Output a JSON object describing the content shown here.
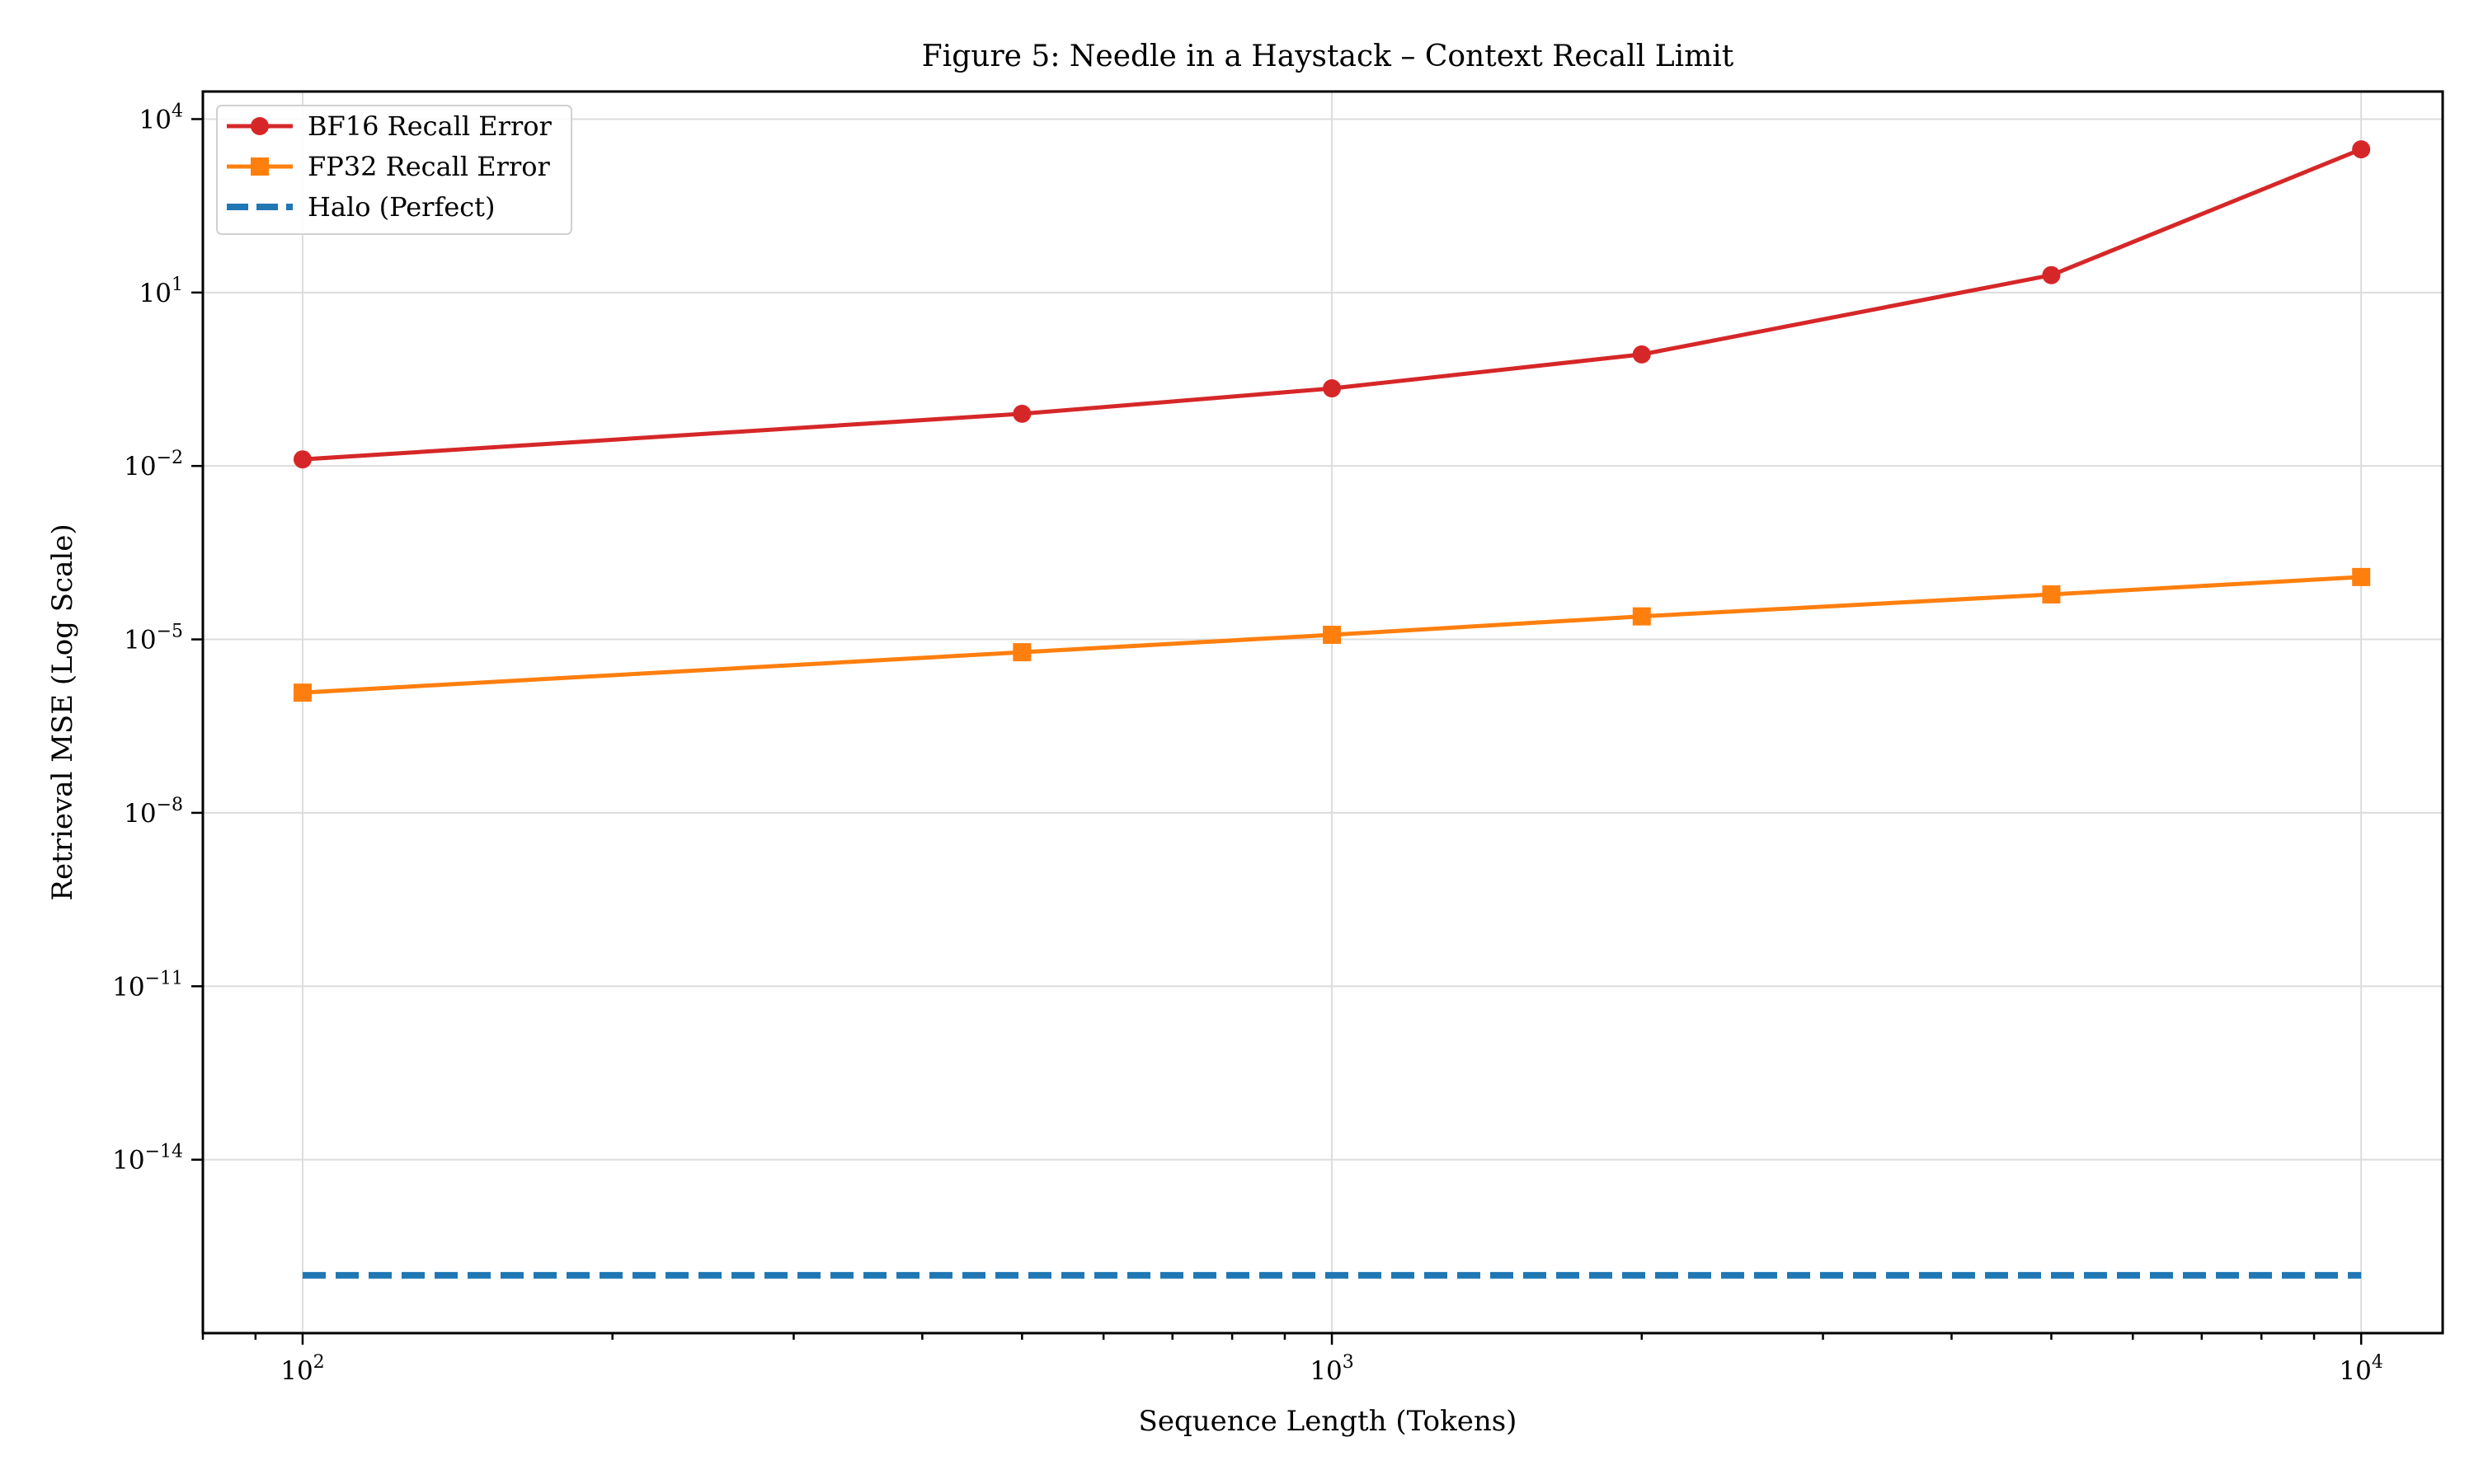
{
  "chart_data": {
    "type": "line",
    "title": "Figure 5: Needle in a Haystack – Context Recall Limit",
    "xlabel": "Sequence Length (Tokens)",
    "ylabel": "Retrieval MSE (Log Scale)",
    "xscale": "log",
    "yscale": "log",
    "xlim": [
      80,
      12000
    ],
    "ylim": [
      1e-17,
      30000.0
    ],
    "grid": true,
    "legend_position": "top-left",
    "x_ticks": [
      {
        "value": 100,
        "base": "10",
        "exp": "2"
      },
      {
        "value": 1000,
        "base": "10",
        "exp": "3"
      },
      {
        "value": 10000,
        "base": "10",
        "exp": "4"
      }
    ],
    "y_ticks": [
      {
        "value": 10000.0,
        "base": "10",
        "exp": "4"
      },
      {
        "value": 10.0,
        "base": "10",
        "exp": "1"
      },
      {
        "value": 0.01,
        "base": "10",
        "exp": "−2"
      },
      {
        "value": 1e-05,
        "base": "10",
        "exp": "−5"
      },
      {
        "value": 1e-08,
        "base": "10",
        "exp": "−8"
      },
      {
        "value": 1e-11,
        "base": "10",
        "exp": "−11"
      },
      {
        "value": 1e-14,
        "base": "10",
        "exp": "−14"
      }
    ],
    "series": [
      {
        "name": "BF16 Recall Error",
        "color": "#d62728",
        "marker": "circle",
        "dash": "solid",
        "x": [
          100,
          500,
          1000,
          2000,
          5000,
          10000
        ],
        "y": [
          0.013,
          0.08,
          0.22,
          0.85,
          20,
          3000
        ]
      },
      {
        "name": "FP32 Recall Error",
        "color": "#ff7f0e",
        "marker": "square",
        "dash": "solid",
        "x": [
          100,
          500,
          1000,
          2000,
          5000,
          10000
        ],
        "y": [
          1.2e-06,
          6e-06,
          1.2e-05,
          2.5e-05,
          6e-05,
          0.00012
        ]
      },
      {
        "name": "Halo (Perfect)",
        "color": "#1f77b4",
        "marker": "none",
        "dash": "dashed",
        "x": [
          100,
          10000
        ],
        "y": [
          1e-16,
          1e-16
        ]
      }
    ]
  }
}
